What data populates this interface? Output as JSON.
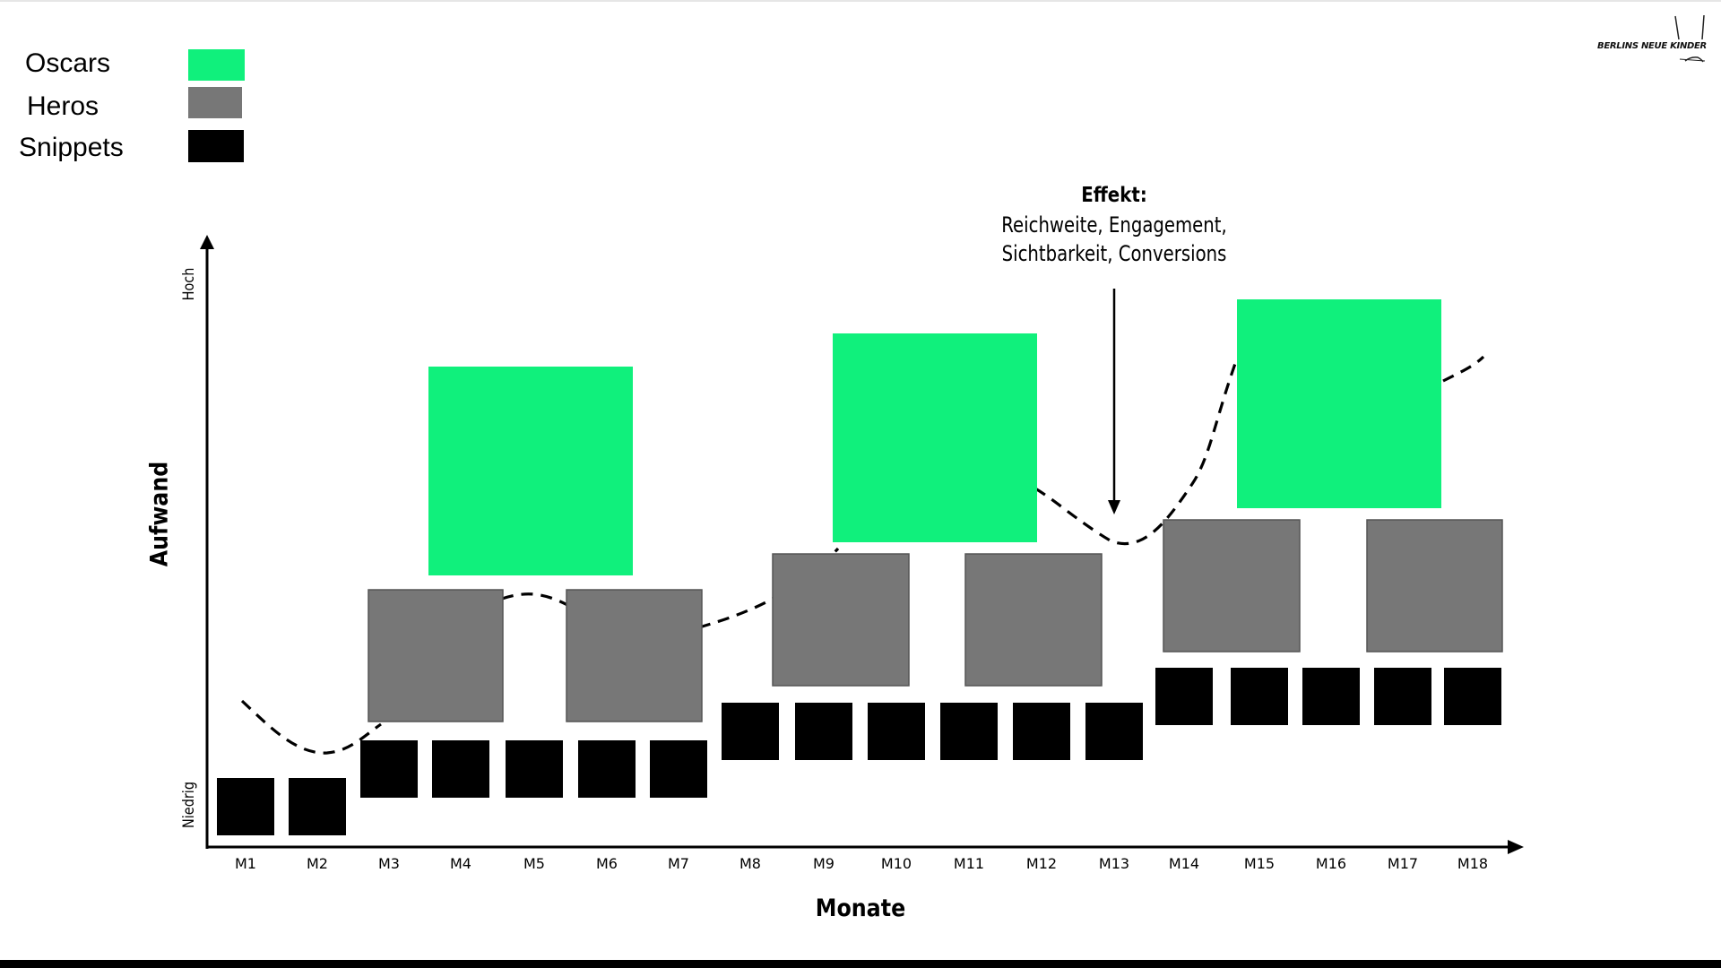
{
  "legend": [
    {
      "label": "Oscars",
      "color": "#10f07c"
    },
    {
      "label": "Heros",
      "color": "#777777"
    },
    {
      "label": "Snippets",
      "color": "#000000"
    }
  ],
  "logo_text": "BERLINS NEUE KINDER",
  "effekt": {
    "title": "Effekt:",
    "line1": "Reichweite, Engagement,",
    "line2": "Sichtbarkeit, Conversions"
  },
  "axes": {
    "x_title": "Monate",
    "y_title": "Aufwand",
    "y_high": "Hoch",
    "y_low": "Niedrig"
  },
  "months": [
    "M1",
    "M2",
    "M3",
    "M4",
    "M5",
    "M6",
    "M7",
    "M8",
    "M9",
    "M10",
    "M11",
    "M12",
    "M13",
    "M14",
    "M15",
    "M16",
    "M17",
    "M18"
  ],
  "snippet_level_by_month": [
    1,
    1,
    2,
    2,
    2,
    2,
    2,
    3,
    3,
    3,
    3,
    3,
    3,
    4,
    4,
    4,
    4,
    4
  ],
  "heros": [
    {
      "months": "M3–M4",
      "level": 1
    },
    {
      "months": "M6–M7",
      "level": 1
    },
    {
      "months": "M9–M10",
      "level": 2
    },
    {
      "months": "M11–M12",
      "level": 2
    },
    {
      "months": "M14–M15",
      "level": 3
    },
    {
      "months": "M17–M18",
      "level": 3
    }
  ],
  "oscars": [
    {
      "months": "M4–M6",
      "level": 1
    },
    {
      "months": "M9–M11",
      "level": 2
    },
    {
      "months": "M15–M17",
      "level": 3
    }
  ],
  "colors": {
    "oscar": "#10f07c",
    "hero": "#777777",
    "snippet": "#000000",
    "axis": "#000000"
  }
}
